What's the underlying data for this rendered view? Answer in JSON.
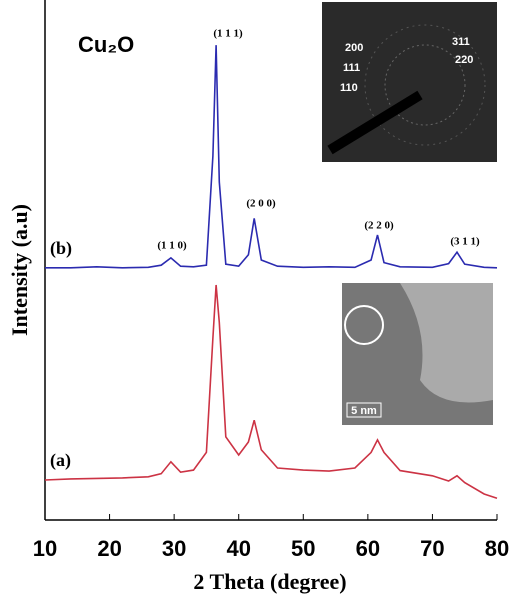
{
  "chart_data": {
    "type": "line",
    "xlabel": "2 Theta (degree)",
    "ylabel": "Intensity (a.u)",
    "x": [
      10,
      14,
      18,
      22,
      26,
      28,
      29.5,
      31,
      33,
      35,
      36,
      36.5,
      37,
      38,
      40,
      41.5,
      42.4,
      43.5,
      46,
      50,
      54,
      58,
      60.5,
      61.5,
      62.5,
      65,
      70,
      72.5,
      73.8,
      75,
      78,
      80
    ],
    "series": [
      {
        "name": "(b)",
        "color": "#2b2bb0",
        "values": [
          48.5,
          48.5,
          48.7,
          48.5,
          48.6,
          49,
          50.4,
          48.8,
          48.7,
          49,
          70,
          91.3,
          65,
          49.2,
          48.8,
          51,
          58,
          50,
          48.8,
          48.6,
          48.7,
          48.6,
          50,
          54.8,
          49.5,
          48.7,
          48.6,
          49.3,
          51.5,
          49.2,
          48.6,
          48.5
        ]
      },
      {
        "name": "(a)",
        "color": "#cc3344",
        "values": [
          7.7,
          7.9,
          8,
          8.1,
          8.3,
          8.9,
          11.2,
          9.2,
          9.6,
          13,
          35,
          45.2,
          38,
          16,
          12.5,
          15,
          19.2,
          13.5,
          10,
          9.6,
          9.4,
          10,
          13,
          15.4,
          13,
          9.5,
          8.5,
          7.5,
          8.5,
          7.2,
          5,
          4.2
        ]
      }
    ],
    "xlim": [
      10,
      80
    ],
    "xticks": [
      10,
      20,
      30,
      40,
      50,
      60,
      70,
      80
    ],
    "ylim": [
      0,
      100
    ],
    "annotations": [
      "Cu₂O",
      "(1 1 1)",
      "(1 1 0)",
      "(2 0 0)",
      "(2 2 0)",
      "(3 1 1)",
      "200",
      "111",
      "110",
      "311",
      "220",
      "5 nm"
    ]
  }
}
